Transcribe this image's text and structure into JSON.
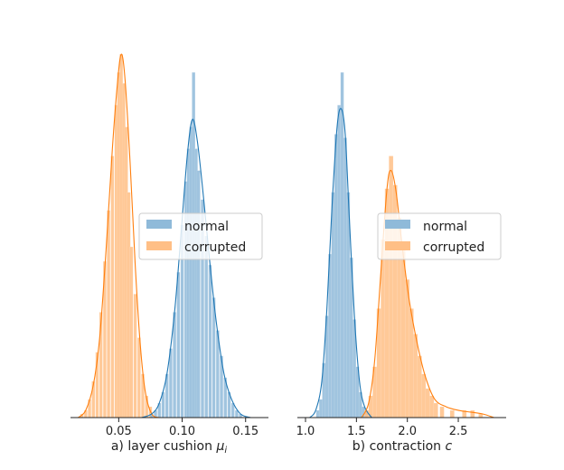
{
  "colors": {
    "normal_fill": "#8fbad9",
    "normal_line": "#1f77b4",
    "corrupted_fill": "#ffbf86",
    "corrupted_line": "#ff7f0e",
    "axis": "#222222"
  },
  "chart_data": [
    {
      "type": "histogram",
      "xlabel_prefix": "a) layer cushion ",
      "xlabel_symbol": "μ",
      "xlabel_subscript": "i",
      "xlim": [
        0.012,
        0.168
      ],
      "ylim": [
        0,
        1
      ],
      "xticks": [
        0.05,
        0.1,
        0.15
      ],
      "xtick_labels": [
        "0.05",
        "0.10",
        "0.15"
      ],
      "y_axis_visible": false,
      "legend_position": "center-right",
      "series": [
        {
          "name": "corrupted",
          "color_key": "corrupted",
          "bin_width": 0.0025,
          "bins": [
            [
              0.021,
              0.01
            ],
            [
              0.024,
              0.02
            ],
            [
              0.027,
              0.05
            ],
            [
              0.03,
              0.1
            ],
            [
              0.033,
              0.18
            ],
            [
              0.036,
              0.29
            ],
            [
              0.039,
              0.43
            ],
            [
              0.042,
              0.57
            ],
            [
              0.045,
              0.72
            ],
            [
              0.048,
              0.86
            ],
            [
              0.05,
              0.95
            ],
            [
              0.052,
              1.0
            ],
            [
              0.054,
              0.92
            ],
            [
              0.056,
              0.8
            ],
            [
              0.058,
              0.62
            ],
            [
              0.06,
              0.47
            ],
            [
              0.063,
              0.34
            ],
            [
              0.066,
              0.22
            ],
            [
              0.069,
              0.12
            ],
            [
              0.072,
              0.06
            ],
            [
              0.075,
              0.03
            ]
          ],
          "kde": [
            [
              0.018,
              0.0
            ],
            [
              0.024,
              0.02
            ],
            [
              0.03,
              0.09
            ],
            [
              0.035,
              0.22
            ],
            [
              0.04,
              0.46
            ],
            [
              0.045,
              0.74
            ],
            [
              0.049,
              0.92
            ],
            [
              0.052,
              1.0
            ],
            [
              0.055,
              0.93
            ],
            [
              0.059,
              0.7
            ],
            [
              0.063,
              0.42
            ],
            [
              0.067,
              0.2
            ],
            [
              0.071,
              0.07
            ],
            [
              0.076,
              0.01
            ],
            [
              0.082,
              0.0
            ]
          ]
        },
        {
          "name": "normal",
          "color_key": "normal",
          "bin_width": 0.0025,
          "bins": [
            [
              0.076,
              0.01
            ],
            [
              0.079,
              0.02
            ],
            [
              0.082,
              0.04
            ],
            [
              0.085,
              0.07
            ],
            [
              0.088,
              0.12
            ],
            [
              0.091,
              0.19
            ],
            [
              0.094,
              0.29
            ],
            [
              0.097,
              0.4
            ],
            [
              0.1,
              0.53
            ],
            [
              0.103,
              0.65
            ],
            [
              0.105,
              0.74
            ],
            [
              0.107,
              0.8
            ],
            [
              0.109,
              0.95
            ],
            [
              0.111,
              0.74
            ],
            [
              0.113,
              0.68
            ],
            [
              0.116,
              0.6
            ],
            [
              0.119,
              0.5
            ],
            [
              0.122,
              0.42
            ],
            [
              0.125,
              0.33
            ],
            [
              0.128,
              0.24
            ],
            [
              0.131,
              0.17
            ],
            [
              0.134,
              0.11
            ],
            [
              0.137,
              0.07
            ],
            [
              0.14,
              0.04
            ],
            [
              0.143,
              0.02
            ],
            [
              0.146,
              0.01
            ]
          ],
          "kde": [
            [
              0.068,
              0.0
            ],
            [
              0.076,
              0.01
            ],
            [
              0.082,
              0.04
            ],
            [
              0.088,
              0.12
            ],
            [
              0.094,
              0.29
            ],
            [
              0.099,
              0.5
            ],
            [
              0.104,
              0.72
            ],
            [
              0.108,
              0.82
            ],
            [
              0.112,
              0.76
            ],
            [
              0.117,
              0.6
            ],
            [
              0.122,
              0.42
            ],
            [
              0.127,
              0.26
            ],
            [
              0.133,
              0.12
            ],
            [
              0.139,
              0.05
            ],
            [
              0.146,
              0.01
            ],
            [
              0.154,
              0.0
            ]
          ]
        }
      ]
    },
    {
      "type": "histogram",
      "xlabel_prefix": "b) contraction ",
      "xlabel_symbol": "c",
      "xlabel_subscript": "",
      "xlim": [
        0.92,
        2.97
      ],
      "ylim": [
        0,
        1
      ],
      "xticks": [
        1.0,
        1.5,
        2.0,
        2.5
      ],
      "xtick_labels": [
        "1.0",
        "1.5",
        "2.0",
        "2.5"
      ],
      "y_axis_visible": false,
      "legend_position": "center-right",
      "series": [
        {
          "name": "normal",
          "color_key": "normal",
          "bin_width": 0.032,
          "bins": [
            [
              1.12,
              0.02
            ],
            [
              1.15,
              0.05
            ],
            [
              1.18,
              0.15
            ],
            [
              1.21,
              0.28
            ],
            [
              1.24,
              0.45
            ],
            [
              1.27,
              0.62
            ],
            [
              1.3,
              0.78
            ],
            [
              1.33,
              0.86
            ],
            [
              1.36,
              0.95
            ],
            [
              1.39,
              0.77
            ],
            [
              1.42,
              0.62
            ],
            [
              1.45,
              0.44
            ],
            [
              1.48,
              0.27
            ],
            [
              1.51,
              0.14
            ],
            [
              1.54,
              0.07
            ],
            [
              1.57,
              0.03
            ],
            [
              1.6,
              0.02
            ],
            [
              1.63,
              0.01
            ]
          ],
          "kde": [
            [
              1.04,
              0.0
            ],
            [
              1.1,
              0.02
            ],
            [
              1.16,
              0.1
            ],
            [
              1.21,
              0.3
            ],
            [
              1.26,
              0.58
            ],
            [
              1.31,
              0.8
            ],
            [
              1.35,
              0.85
            ],
            [
              1.39,
              0.78
            ],
            [
              1.43,
              0.55
            ],
            [
              1.48,
              0.28
            ],
            [
              1.53,
              0.1
            ],
            [
              1.58,
              0.03
            ],
            [
              1.65,
              0.0
            ]
          ]
        },
        {
          "name": "corrupted",
          "color_key": "corrupted",
          "bin_width": 0.042,
          "bins": [
            [
              1.6,
              0.02
            ],
            [
              1.64,
              0.06
            ],
            [
              1.68,
              0.14
            ],
            [
              1.72,
              0.3
            ],
            [
              1.76,
              0.49
            ],
            [
              1.8,
              0.63
            ],
            [
              1.84,
              0.72
            ],
            [
              1.88,
              0.64
            ],
            [
              1.92,
              0.55
            ],
            [
              1.96,
              0.46
            ],
            [
              2.0,
              0.38
            ],
            [
              2.04,
              0.3
            ],
            [
              2.08,
              0.23
            ],
            [
              2.12,
              0.17
            ],
            [
              2.16,
              0.12
            ],
            [
              2.2,
              0.08
            ],
            [
              2.24,
              0.06
            ],
            [
              2.28,
              0.04
            ],
            [
              2.34,
              0.03
            ],
            [
              2.44,
              0.02
            ],
            [
              2.56,
              0.02
            ],
            [
              2.64,
              0.02
            ],
            [
              2.72,
              0.01
            ]
          ],
          "kde": [
            [
              1.55,
              0.0
            ],
            [
              1.62,
              0.04
            ],
            [
              1.68,
              0.16
            ],
            [
              1.74,
              0.4
            ],
            [
              1.8,
              0.63
            ],
            [
              1.84,
              0.68
            ],
            [
              1.89,
              0.62
            ],
            [
              1.95,
              0.47
            ],
            [
              2.02,
              0.32
            ],
            [
              2.1,
              0.2
            ],
            [
              2.18,
              0.11
            ],
            [
              2.27,
              0.05
            ],
            [
              2.38,
              0.03
            ],
            [
              2.5,
              0.02
            ],
            [
              2.62,
              0.015
            ],
            [
              2.74,
              0.01
            ],
            [
              2.85,
              0.0
            ]
          ]
        }
      ]
    }
  ]
}
